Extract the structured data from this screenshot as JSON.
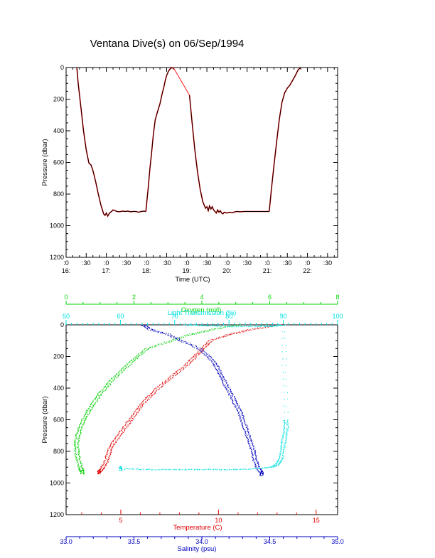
{
  "page": {
    "title": "Ventana Dive(s) on 06/Sep/1994"
  },
  "chart_data": [
    {
      "type": "line",
      "name": "dive-time-series",
      "xlabel": "Time (UTC)",
      "ylabel": "Pressure (dbar)",
      "ylim": [
        1200,
        0
      ],
      "y_ticks": [
        0,
        200,
        400,
        600,
        800,
        1000,
        1200
      ],
      "x_ticks": [
        {
          "t": 0,
          "top": ":0",
          "bottom": "16:"
        },
        {
          "t": 30,
          "top": ":30",
          "bottom": ""
        },
        {
          "t": 60,
          "top": ":0",
          "bottom": "17:"
        },
        {
          "t": 90,
          "top": ":30",
          "bottom": ""
        },
        {
          "t": 120,
          "top": ":0",
          "bottom": "18:"
        },
        {
          "t": 150,
          "top": ":30",
          "bottom": ""
        },
        {
          "t": 180,
          "top": ":0",
          "bottom": "19:"
        },
        {
          "t": 210,
          "top": ":30",
          "bottom": ""
        },
        {
          "t": 240,
          "top": ":0",
          "bottom": "20:"
        },
        {
          "t": 270,
          "top": ":30",
          "bottom": ""
        },
        {
          "t": 300,
          "top": ":0",
          "bottom": "21:"
        },
        {
          "t": 330,
          "top": ":30",
          "bottom": ""
        },
        {
          "t": 360,
          "top": ":0",
          "bottom": "22:"
        },
        {
          "t": 390,
          "top": ":30",
          "bottom": ""
        }
      ],
      "xlim": [
        0,
        405
      ],
      "colors": {
        "dive": "#000000",
        "connector": "#ff0000"
      },
      "series": [
        {
          "color": "#000000",
          "x": [
            16,
            18,
            22,
            26,
            30,
            34,
            37,
            40,
            44,
            48,
            52,
            56,
            58,
            60,
            62,
            64,
            66,
            68,
            70,
            73,
            76,
            80,
            84,
            88,
            92,
            96,
            100,
            104,
            108,
            112,
            116,
            119
          ],
          "y": [
            0,
            100,
            250,
            400,
            520,
            605,
            615,
            650,
            720,
            800,
            870,
            925,
            935,
            920,
            940,
            925,
            915,
            910,
            900,
            905,
            910,
            912,
            908,
            910,
            908,
            912,
            910,
            910,
            915,
            910,
            908,
            910
          ]
        },
        {
          "color": "#000000",
          "x": [
            119,
            122,
            125,
            128,
            130,
            133,
            137,
            140,
            143,
            146,
            148,
            150,
            153,
            156,
            160
          ],
          "y": [
            910,
            780,
            640,
            520,
            430,
            330,
            270,
            230,
            170,
            120,
            80,
            50,
            20,
            5,
            0
          ]
        },
        {
          "color": "#ff0000",
          "x": [
            160,
            184
          ],
          "y": [
            0,
            175
          ]
        },
        {
          "color": "#000000",
          "x": [
            184,
            188,
            192,
            196,
            200,
            204,
            208,
            210,
            212,
            214,
            216,
            218,
            220,
            222,
            224,
            226,
            228,
            230,
            232,
            234,
            236,
            238,
            240,
            244,
            248,
            252,
            256,
            260,
            266,
            272,
            280,
            288,
            296,
            303
          ],
          "y": [
            175,
            350,
            520,
            660,
            770,
            850,
            890,
            880,
            905,
            875,
            895,
            880,
            900,
            910,
            920,
            900,
            915,
            905,
            920,
            925,
            915,
            918,
            920,
            915,
            918,
            912,
            910,
            912,
            910,
            910,
            910,
            910,
            910,
            910
          ]
        },
        {
          "color": "#000000",
          "x": [
            303,
            306,
            310,
            314,
            318,
            322,
            326,
            330,
            334,
            338,
            342,
            346,
            350
          ],
          "y": [
            910,
            780,
            620,
            470,
            330,
            220,
            160,
            130,
            110,
            80,
            50,
            15,
            0
          ]
        }
      ]
    },
    {
      "type": "scatter",
      "name": "vertical-profiles",
      "ylabel": "Pressure (dbar)",
      "ylim": [
        1200,
        0
      ],
      "y_ticks": [
        0,
        200,
        400,
        600,
        800,
        1000,
        1200
      ],
      "axes": {
        "oxygen": {
          "label": "Oxygen (ml/l)",
          "range": [
            0,
            8
          ],
          "ticks": [
            0,
            2,
            4,
            6,
            8
          ],
          "color": "#00d000",
          "position": "top-outer"
        },
        "light": {
          "label": "Light Transmission (%)",
          "range": [
            50,
            100
          ],
          "ticks": [
            50,
            60,
            70,
            80,
            90,
            100
          ],
          "color": "#00e0e0",
          "position": "top-inner"
        },
        "temperature": {
          "label": "Temperature (C)",
          "range": [
            2.2,
            16.1
          ],
          "ticks": [
            5,
            10,
            15
          ],
          "color": "#e00000",
          "position": "bottom-inner"
        },
        "salinity": {
          "label": "Salinity (psu)",
          "range": [
            33.0,
            35.0
          ],
          "ticks": [
            "33.0",
            "33.5",
            "34.0",
            "34.5",
            "35.0"
          ],
          "color": "#0000c0",
          "position": "bottom-outer"
        }
      },
      "series": [
        {
          "axis": "oxygen",
          "color": "#00d000",
          "pressure": [
            0,
            30,
            60,
            100,
            150,
            200,
            250,
            300,
            350,
            400,
            450,
            500,
            550,
            600,
            650,
            700,
            750,
            800,
            850,
            900,
            930
          ],
          "values": [
            5.1,
            4.3,
            3.7,
            3.1,
            2.4,
            2.1,
            1.85,
            1.6,
            1.35,
            1.15,
            0.95,
            0.8,
            0.65,
            0.52,
            0.42,
            0.35,
            0.3,
            0.32,
            0.35,
            0.42,
            0.48
          ]
        },
        {
          "axis": "temperature",
          "color": "#e00000",
          "pressure": [
            0,
            30,
            60,
            100,
            150,
            200,
            250,
            300,
            350,
            400,
            450,
            500,
            550,
            600,
            650,
            700,
            750,
            800,
            850,
            900,
            930
          ],
          "values": [
            13.2,
            11.7,
            10.6,
            9.6,
            9.2,
            8.8,
            8.4,
            7.9,
            7.4,
            6.9,
            6.5,
            6.1,
            5.8,
            5.5,
            5.2,
            4.9,
            4.6,
            4.4,
            4.3,
            4.1,
            3.9
          ]
        },
        {
          "axis": "salinity",
          "color": "#0000c0",
          "pressure": [
            0,
            30,
            60,
            100,
            150,
            200,
            250,
            300,
            350,
            400,
            450,
            500,
            550,
            600,
            650,
            700,
            750,
            800,
            850,
            900,
            940
          ],
          "values": [
            33.57,
            33.62,
            33.75,
            33.85,
            33.98,
            34.05,
            34.1,
            34.13,
            34.16,
            34.19,
            34.22,
            34.25,
            34.28,
            34.3,
            34.32,
            34.34,
            34.36,
            34.38,
            34.39,
            34.41,
            34.44
          ]
        },
        {
          "axis": "light",
          "color": "#00e0e0",
          "pressure": [
            0,
            5,
            10,
            10,
            8,
            0,
            600,
            650,
            700,
            750,
            800,
            850,
            880,
            900,
            910,
            915,
            915,
            915,
            915,
            910
          ],
          "values": [
            72,
            76,
            80,
            85,
            88,
            90,
            90.5,
            90.5,
            90.3,
            90,
            89.8,
            89.5,
            89,
            88,
            85,
            80,
            75,
            70,
            65,
            60
          ]
        }
      ]
    }
  ]
}
